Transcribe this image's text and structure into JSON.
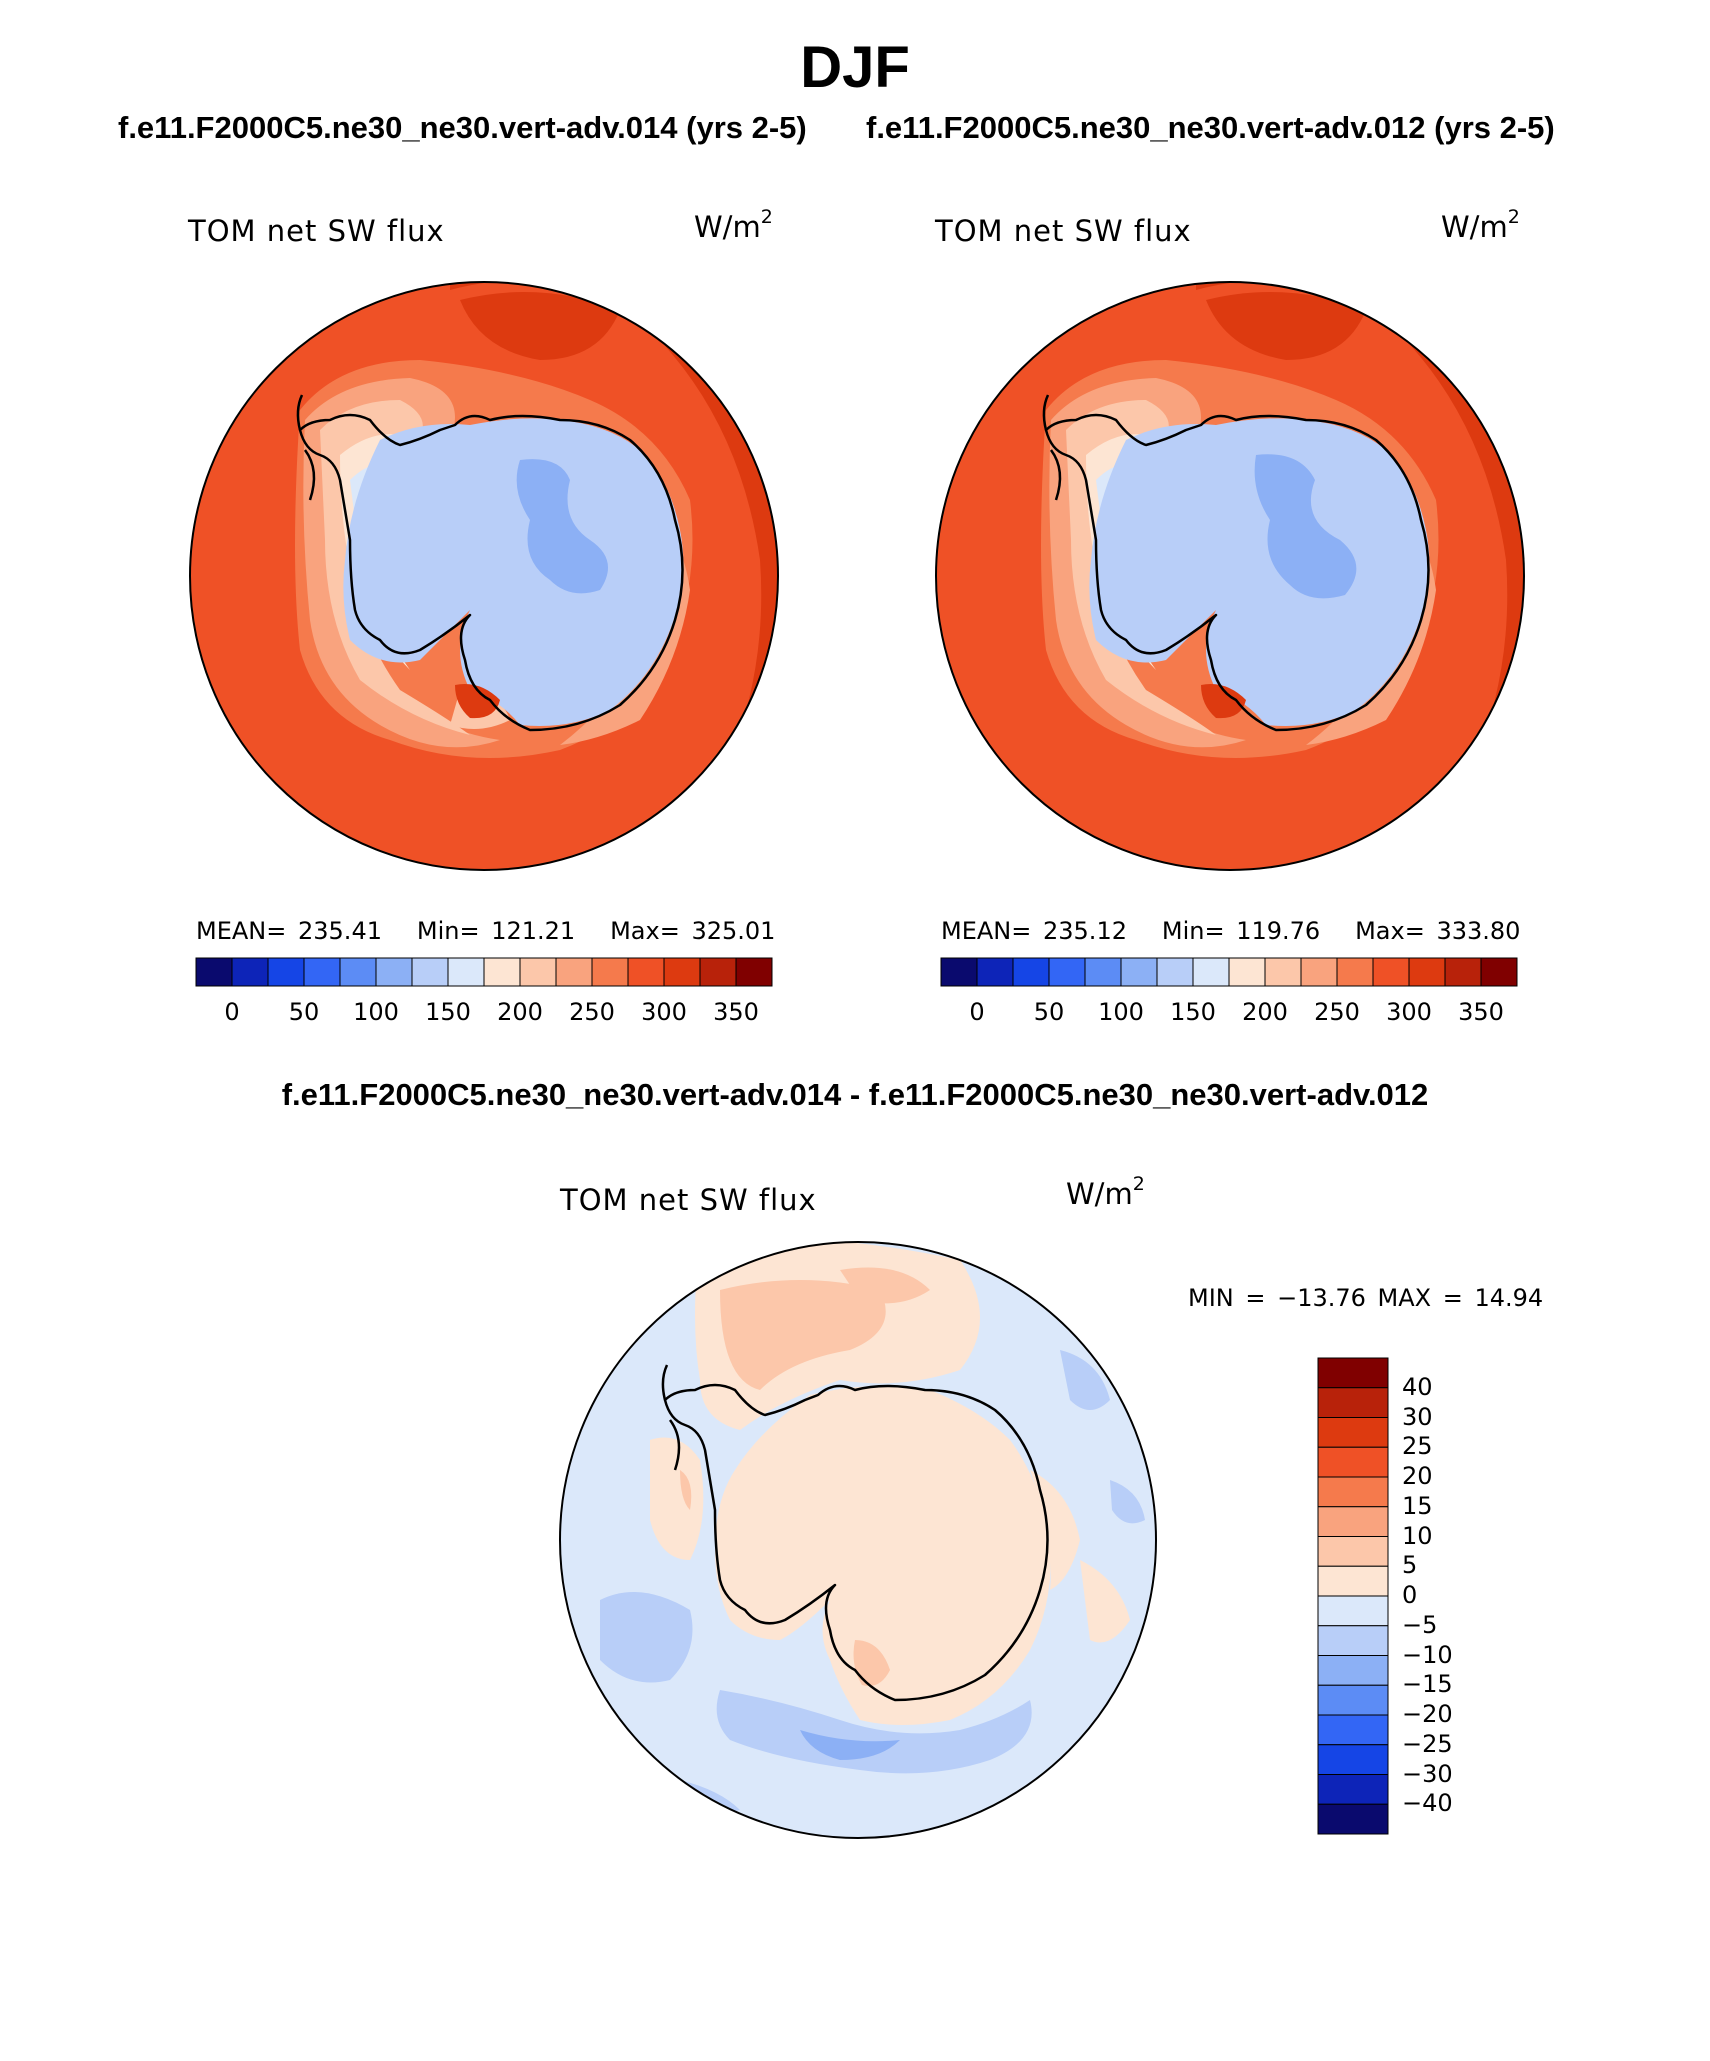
{
  "figure": {
    "title": "DJF"
  },
  "panels": [
    {
      "case_title": "f.e11.F2000C5.ne30_ne30.vert-adv.014 (yrs 2-5)",
      "label": "TOM net SW flux",
      "units": "W/m",
      "units_exp": "2",
      "stats": {
        "mean_label": "MEAN=",
        "mean": "235.41",
        "min_label": "Min=",
        "min": "121.21",
        "max_label": "Max=",
        "max": "325.01"
      }
    },
    {
      "case_title": "f.e11.F2000C5.ne30_ne30.vert-adv.012 (yrs 2-5)",
      "label": "TOM net SW flux",
      "units": "W/m",
      "units_exp": "2",
      "stats": {
        "mean_label": "MEAN=",
        "mean": "235.12",
        "min_label": "Min=",
        "min": "119.76",
        "max_label": "Max=",
        "max": "333.80"
      }
    }
  ],
  "difference": {
    "title": "f.e11.F2000C5.ne30_ne30.vert-adv.014 - f.e11.F2000C5.ne30_ne30.vert-adv.012",
    "label": "TOM net SW flux",
    "units": "W/m",
    "units_exp": "2",
    "stats_text": "MIN = −13.76 MAX =   14.94"
  },
  "colorbars": {
    "field": {
      "colors": [
        "#0a0a6e",
        "#0d24b8",
        "#1545e6",
        "#3366f5",
        "#5c8cf5",
        "#8cb0f5",
        "#b8cef8",
        "#dbe8fa",
        "#fde5d3",
        "#fcc7aa",
        "#f9a37e",
        "#f57a4c",
        "#ef5126",
        "#dd3a10",
        "#b8220a",
        "#800000"
      ],
      "tick_labels": [
        "0",
        "50",
        "100",
        "150",
        "200",
        "250",
        "300",
        "350"
      ]
    },
    "difference": {
      "colors": [
        "#0a0a6e",
        "#0d24b8",
        "#1545e6",
        "#3366f5",
        "#5c8cf5",
        "#8cb0f5",
        "#b8cef8",
        "#dbe8fa",
        "#fde5d3",
        "#fcc7aa",
        "#f9a37e",
        "#f57a4c",
        "#ef5126",
        "#dd3a10",
        "#b8220a",
        "#800000"
      ],
      "tick_labels": [
        "40",
        "30",
        "25",
        "20",
        "15",
        "10",
        "5",
        "0",
        "−5",
        "−10",
        "−15",
        "−20",
        "−25",
        "−30",
        "−40"
      ]
    }
  },
  "map_colors": {
    "ocean_warm": "#ef5126",
    "ocean_hot": "#dd3a10",
    "coast_band_1": "#f57a4c",
    "coast_band_2": "#f9a37e",
    "coast_band_3": "#fcc7aa",
    "coast_band_4": "#fde5d3",
    "coast_band_5": "#dbe8fa",
    "ice": "#b8cef8",
    "ice_dark": "#8cb0f5",
    "diff_pos": "#fde5d3",
    "diff_pos_strong": "#fcc7aa",
    "diff_neg": "#dbe8fa",
    "diff_neg_strong": "#b8cef8",
    "diff_neg_stronger": "#8cb0f5"
  }
}
